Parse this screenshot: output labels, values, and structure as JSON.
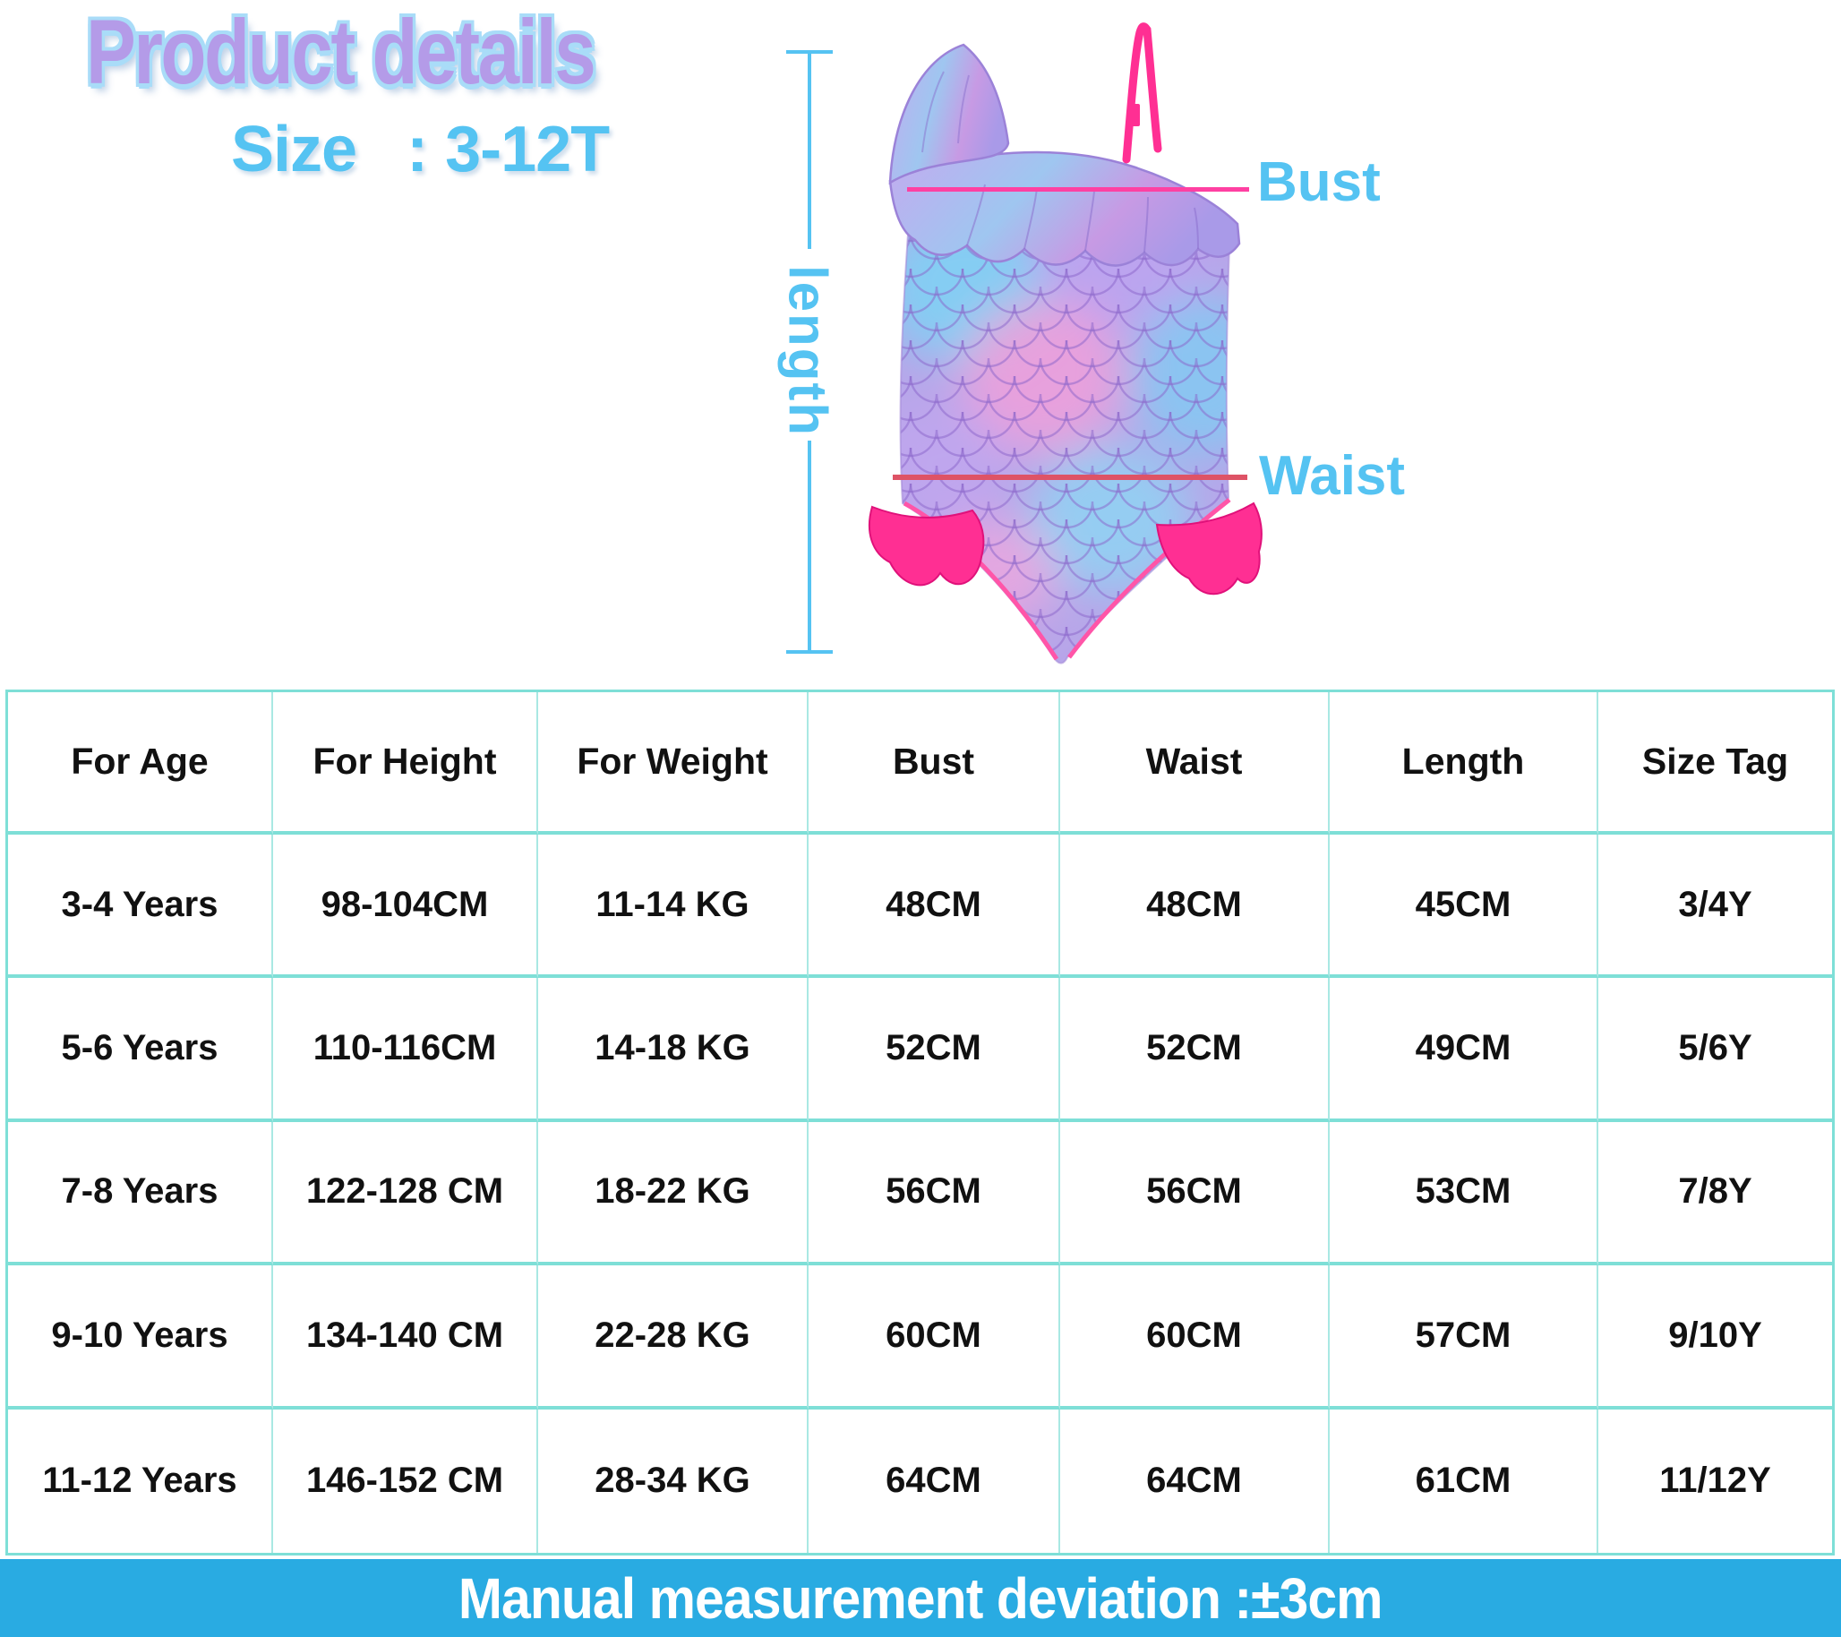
{
  "page": {
    "title": "Product details",
    "size_label": "Size",
    "size_colon": ":",
    "size_value": "3-12T"
  },
  "diagram": {
    "length_label": "length",
    "bust_label": "Bust",
    "waist_label": "Waist",
    "product_image": "girls one-shoulder ruffle mermaid-scale one-piece swimsuit"
  },
  "size_chart": {
    "columns": [
      "For Age",
      "For Height",
      "For Weight",
      "Bust",
      "Waist",
      "Length",
      "Size Tag"
    ],
    "rows": [
      [
        "3-4 Years",
        "98-104CM",
        "11-14 KG",
        "48CM",
        "48CM",
        "45CM",
        "3/4Y"
      ],
      [
        "5-6 Years",
        "110-116CM",
        "14-18 KG",
        "52CM",
        "52CM",
        "49CM",
        "5/6Y"
      ],
      [
        "7-8 Years",
        "122-128 CM",
        "18-22 KG",
        "56CM",
        "56CM",
        "53CM",
        "7/8Y"
      ],
      [
        "9-10 Years",
        "134-140 CM",
        "22-28 KG",
        "60CM",
        "60CM",
        "57CM",
        "9/10Y"
      ],
      [
        "11-12 Years",
        "146-152 CM",
        "28-34 KG",
        "64CM",
        "64CM",
        "61CM",
        "11/12Y"
      ]
    ]
  },
  "footer": {
    "note": "Manual measurement deviation :±3cm"
  },
  "colors": {
    "title_fill": "#b49be8",
    "title_outline": "#a9dcf8",
    "accent_blue": "#55c3f2",
    "table_border": "#7edfd7",
    "table_border_light": "#a9e8e3",
    "banner_bg": "#29abe2",
    "bust_line": "#ff40a2",
    "waist_line": "#de5366",
    "hot_pink": "#ff2f93"
  }
}
